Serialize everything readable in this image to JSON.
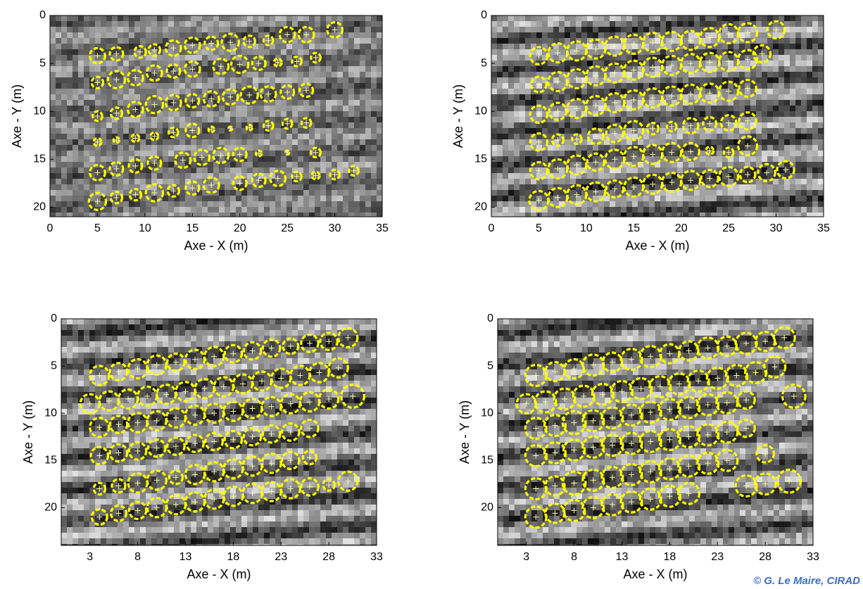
{
  "chart_data": [
    {
      "type": "scatter",
      "xlabel": "Axe - X (m)",
      "ylabel": "Axe - Y (m)",
      "xlim": [
        0,
        35
      ],
      "ylim": [
        0,
        21
      ],
      "y_inverted": true,
      "xticks": [
        0,
        5,
        10,
        15,
        20,
        25,
        30,
        35
      ],
      "yticks": [
        0,
        5,
        10,
        15,
        20
      ],
      "color": "#ffff00",
      "x": [
        5,
        7,
        9.5,
        11,
        13,
        15,
        17,
        19,
        21,
        23,
        25,
        27,
        30,
        5,
        7,
        9,
        11,
        13,
        15,
        18,
        20,
        22,
        24,
        26,
        28,
        5,
        7,
        9,
        11,
        13,
        15,
        17,
        19,
        21,
        23,
        25,
        27,
        5,
        7,
        9,
        11,
        13,
        15,
        17,
        19,
        21,
        23,
        25,
        27,
        5,
        7,
        9,
        11,
        14,
        16,
        18,
        20,
        22,
        25,
        28,
        5,
        7,
        9,
        11,
        13,
        15,
        17,
        20,
        22,
        24,
        26,
        28,
        30,
        32
      ],
      "y": [
        4.2,
        4,
        3.8,
        3.6,
        3.4,
        3.1,
        2.9,
        2.8,
        2.7,
        2.6,
        2,
        2,
        1.5,
        7,
        6.7,
        6.5,
        6,
        5.8,
        5.6,
        5.3,
        5.1,
        5,
        4.9,
        4.8,
        4.4,
        10.5,
        10.2,
        9.8,
        9.3,
        9.1,
        8.9,
        8.7,
        8.5,
        8.3,
        8.2,
        8,
        7.8,
        13.2,
        13,
        12.8,
        12.6,
        12.2,
        12,
        11.9,
        11.8,
        11.7,
        11.5,
        11.3,
        11.2,
        16.4,
        16,
        15.7,
        15.4,
        15.1,
        14.8,
        14.6,
        14.5,
        14.4,
        14.3,
        14.3,
        19.4,
        19,
        18.7,
        18.5,
        18.3,
        18,
        17.7,
        17.5,
        17.2,
        17,
        16.8,
        16.7,
        16.6,
        16.2
      ],
      "radius": [
        0.8,
        0.7,
        0.6,
        0.6,
        0.8,
        0.8,
        0.7,
        0.9,
        0.6,
        0.5,
        0.8,
        0.8,
        0.8,
        0.6,
        0.9,
        0.8,
        0.8,
        0.7,
        0.8,
        0.8,
        0.9,
        0.7,
        0.4,
        0.5,
        0.5,
        0.5,
        0.6,
        0.8,
        0.9,
        0.8,
        0.7,
        0.8,
        0.8,
        0.9,
        0.8,
        0.7,
        0.7,
        0.4,
        0.3,
        0.4,
        0.4,
        0.5,
        0.7,
        0.3,
        0.2,
        0.3,
        0.5,
        0.5,
        0.5,
        0.8,
        0.7,
        0.7,
        0.7,
        0.8,
        0.8,
        0.8,
        0.7,
        0.3,
        0.2,
        0.5,
        0.9,
        0.6,
        0.6,
        0.9,
        0.6,
        0.7,
        0.8,
        0.7,
        0.7,
        0.8,
        0.5,
        0.4,
        0.5,
        0.5
      ]
    },
    {
      "type": "scatter",
      "xlabel": "Axe - X (m)",
      "ylabel": "Axe - Y (m)",
      "xlim": [
        0,
        35
      ],
      "ylim": [
        0,
        21
      ],
      "y_inverted": true,
      "xticks": [
        0,
        5,
        10,
        15,
        20,
        25,
        30,
        35
      ],
      "yticks": [
        0,
        5,
        10,
        15,
        20
      ],
      "color": "#ffff00",
      "x": [
        5,
        7,
        9,
        11,
        13,
        15,
        17,
        19,
        21,
        23,
        25,
        27,
        30,
        5,
        7,
        9,
        11,
        13,
        15,
        17,
        19,
        21,
        23,
        25,
        27,
        28.5,
        5,
        7,
        9,
        11,
        13,
        15,
        17,
        19,
        21,
        23,
        25,
        27,
        5,
        7,
        9,
        11,
        13,
        15,
        17,
        19,
        21,
        23,
        25,
        27,
        5,
        7,
        9,
        11,
        13,
        15,
        17,
        19,
        21,
        23,
        25,
        27,
        5,
        7,
        9,
        11,
        13,
        15,
        17,
        19,
        21,
        23,
        25,
        27,
        29,
        31
      ],
      "y": [
        4.2,
        3.9,
        3.7,
        3.5,
        3.2,
        3,
        2.8,
        2.7,
        2.6,
        2.3,
        1.9,
        1.8,
        1.5,
        7.2,
        6.9,
        6.6,
        6.3,
        6,
        5.7,
        5.4,
        5.2,
        5,
        4.9,
        4.8,
        4.6,
        4,
        10.3,
        10,
        9.7,
        9.4,
        9.1,
        8.8,
        8.6,
        8.4,
        8.2,
        8.1,
        7.9,
        7.6,
        13.2,
        13,
        12.9,
        12.6,
        12.3,
        12,
        11.8,
        11.6,
        11.5,
        11.3,
        11.2,
        11,
        16.2,
        16,
        15.6,
        15.3,
        15,
        14.7,
        14.5,
        14.3,
        14.2,
        14.1,
        14.3,
        13.6,
        19.3,
        19,
        18.7,
        18.4,
        18.1,
        17.9,
        17.6,
        17.4,
        17.2,
        17,
        16.8,
        16.6,
        16.4,
        16.1
      ],
      "radius": [
        0.9,
        1,
        1,
        1,
        1,
        1,
        1,
        1,
        1,
        1,
        1,
        1,
        0.9,
        0.8,
        1,
        1,
        1,
        1,
        1,
        1,
        1,
        1,
        1,
        1,
        1,
        0.9,
        0.9,
        0.9,
        1,
        1,
        1,
        1,
        1,
        1,
        1,
        1,
        1,
        0.9,
        0.9,
        0.6,
        0.5,
        0.8,
        0.9,
        1,
        0.6,
        0.5,
        0.8,
        0.7,
        0.8,
        0.9,
        0.9,
        1,
        1,
        0.9,
        1,
        1,
        1,
        1,
        0.9,
        0.4,
        0.5,
        1,
        1,
        1,
        1,
        1,
        0.9,
        1,
        1,
        1,
        1,
        0.9,
        1,
        0.8,
        0.9,
        0.9
      ]
    },
    {
      "type": "scatter",
      "xlabel": "Axe - X (m)",
      "ylabel": "Axe - Y (m)",
      "xlim": [
        0,
        33
      ],
      "ylim": [
        0,
        24
      ],
      "y_inverted": true,
      "xticks": [
        3,
        8,
        13,
        18,
        23,
        28,
        33
      ],
      "yticks": [
        0,
        5,
        10,
        15,
        20
      ],
      "color": "#ffff00",
      "x": [
        4,
        6,
        8,
        10,
        12,
        14,
        16,
        18,
        20,
        22,
        24,
        26,
        28,
        30,
        3,
        5,
        7,
        9,
        11,
        13,
        15,
        17,
        19,
        21,
        23,
        25,
        27,
        29,
        4,
        6,
        8,
        10,
        12,
        14,
        16,
        18,
        20,
        22,
        24,
        26,
        28,
        30.5,
        4,
        6,
        8,
        10,
        12,
        14,
        16,
        18,
        20,
        22,
        24,
        26,
        4,
        6,
        8,
        10,
        12,
        14,
        16,
        18,
        20,
        22,
        24,
        26,
        4,
        6,
        8,
        10,
        12,
        14,
        16,
        18,
        20,
        22,
        24,
        26,
        28,
        30
      ],
      "y": [
        6,
        5.6,
        5.3,
        4.9,
        4.6,
        4.3,
        4,
        3.7,
        3.4,
        3.1,
        2.9,
        2.6,
        2.4,
        2,
        9,
        8.7,
        8.5,
        8.2,
        8,
        7.7,
        7.4,
        7.2,
        6.9,
        6.6,
        6.3,
        6,
        5.7,
        5.2,
        11.5,
        11.2,
        11,
        10.8,
        10.5,
        10.2,
        10,
        9.8,
        9.5,
        9.3,
        9,
        8.8,
        8.5,
        8.2,
        14.5,
        14.2,
        14,
        13.7,
        13.5,
        13.2,
        13,
        12.8,
        12.5,
        12.2,
        12,
        11.6,
        18,
        17.7,
        17.4,
        17.1,
        16.8,
        16.5,
        16.2,
        15.9,
        15.6,
        15.3,
        15,
        14.7,
        21,
        20.6,
        20.3,
        20,
        19.7,
        19.4,
        19.1,
        18.8,
        18.5,
        18.3,
        18,
        17.8,
        17.6,
        17.2
      ],
      "radius": [
        1,
        0.9,
        1,
        1,
        0.9,
        1,
        1,
        0.9,
        0.9,
        0.9,
        0.8,
        0.9,
        0.9,
        1,
        1,
        1,
        1,
        1,
        1,
        1,
        1,
        1,
        1,
        1,
        1,
        1,
        1,
        1,
        1,
        0.9,
        1,
        1,
        1,
        1,
        1,
        1,
        1,
        1,
        1,
        1,
        1,
        1.2,
        0.9,
        0.9,
        0.9,
        0.9,
        0.9,
        0.9,
        0.9,
        0.9,
        0.9,
        0.9,
        0.9,
        0.9,
        0.6,
        0.7,
        1,
        1,
        0.7,
        1,
        1,
        1,
        1,
        1,
        0.9,
        0.7,
        0.8,
        0.8,
        0.9,
        1,
        1,
        1,
        1,
        1,
        1,
        1,
        1,
        0.9,
        0.6,
        1
      ]
    },
    {
      "type": "scatter",
      "xlabel": "Axe - X (m)",
      "ylabel": "Axe - Y (m)",
      "xlim": [
        0,
        33
      ],
      "ylim": [
        0,
        24
      ],
      "y_inverted": true,
      "xticks": [
        3,
        8,
        13,
        18,
        23,
        28,
        33
      ],
      "yticks": [
        0,
        5,
        10,
        15,
        20
      ],
      "color": "#ffff00",
      "x": [
        4,
        6,
        8,
        10,
        12,
        14,
        16,
        18,
        20,
        22,
        24,
        26,
        28,
        30,
        3,
        5,
        7,
        9,
        11,
        13,
        15,
        17,
        19,
        21,
        23,
        25,
        27,
        29,
        31,
        4,
        6,
        8,
        10,
        12,
        14,
        16,
        18,
        20,
        22,
        24,
        26,
        4,
        6,
        8,
        10,
        12,
        14,
        16,
        18,
        20,
        22,
        24,
        26,
        28,
        4,
        6,
        8,
        10,
        12,
        14,
        16,
        18,
        20,
        22,
        24,
        26,
        28,
        30.5,
        4,
        6,
        8,
        10,
        12,
        14,
        16,
        18,
        20
      ],
      "y": [
        6,
        5.6,
        5.3,
        4.9,
        4.6,
        4.3,
        4,
        3.7,
        3.4,
        3.1,
        2.9,
        2.6,
        2.4,
        2,
        9,
        8.8,
        8.5,
        8.2,
        8,
        7.7,
        7.4,
        7.2,
        6.9,
        6.6,
        6.3,
        6,
        5.7,
        5.1,
        8.2,
        11.6,
        11.3,
        11,
        10.8,
        10.5,
        10.2,
        9.9,
        9.6,
        9.4,
        9.1,
        8.9,
        8.6,
        14.5,
        14.2,
        13.9,
        13.6,
        13.4,
        13.2,
        13,
        12.8,
        12.5,
        12.3,
        12,
        11.6,
        14.3,
        18,
        17.7,
        17.4,
        17.1,
        16.8,
        16.5,
        16.2,
        15.9,
        15.6,
        15.3,
        15,
        17.7,
        17.5,
        17.2,
        21,
        20.6,
        20.3,
        20,
        19.7,
        19.4,
        19.1,
        18.8,
        18.5
      ],
      "radius": [
        1.1,
        1,
        1,
        1.1,
        1,
        1.1,
        1.1,
        1,
        1,
        1.1,
        1,
        1.1,
        1,
        1.1,
        1,
        1.1,
        1.1,
        1.1,
        1.1,
        1.1,
        1.1,
        1.1,
        1.1,
        1.1,
        1.1,
        1.1,
        1.1,
        1.1,
        1.2,
        1.1,
        1.1,
        1.2,
        1.1,
        1.1,
        1.1,
        1.1,
        1.1,
        1.1,
        1.1,
        1.1,
        0.9,
        1.1,
        1.1,
        1.1,
        1.1,
        1.1,
        1.1,
        1.1,
        1.1,
        1.1,
        1.1,
        1.1,
        0.9,
        0.9,
        1.1,
        1,
        1.2,
        1.1,
        1.1,
        1.1,
        1.1,
        1.1,
        1.1,
        1.1,
        1.1,
        1.1,
        1.1,
        1.2,
        1.1,
        1,
        1.1,
        1.1,
        1.1,
        1.1,
        1.1,
        1.1,
        1.1
      ]
    }
  ],
  "credit": "© G. Le Maire, CIRAD"
}
